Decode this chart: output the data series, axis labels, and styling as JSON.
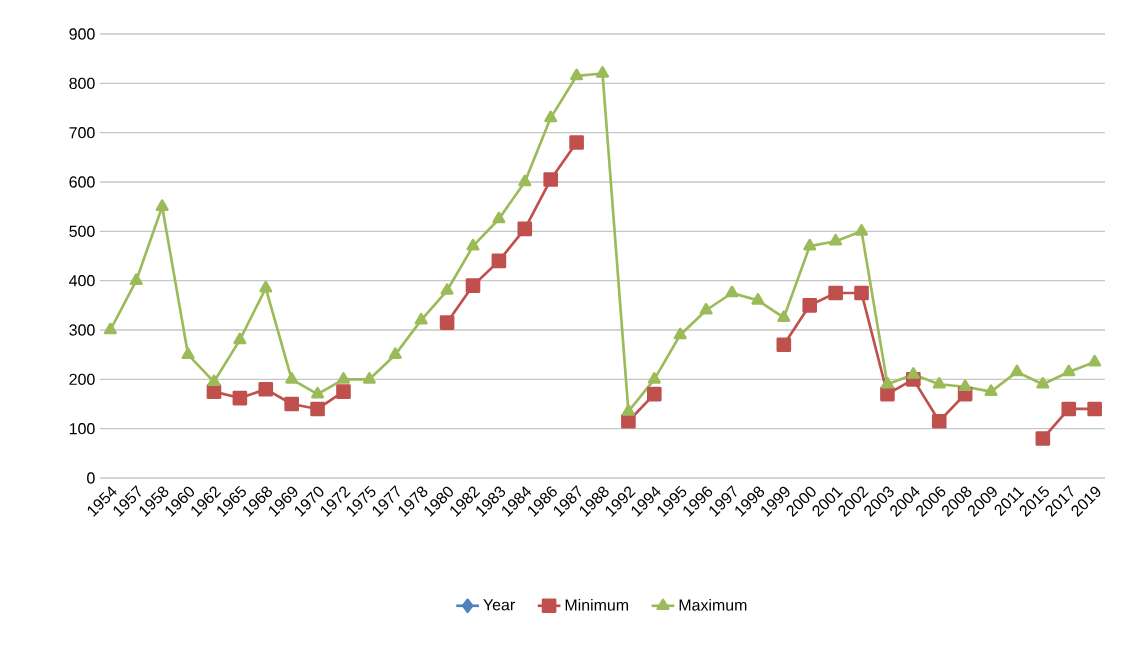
{
  "chart_data": {
    "type": "line",
    "categories": [
      "1954",
      "1957",
      "1958",
      "1960",
      "1962",
      "1965",
      "1968",
      "1969",
      "1970",
      "1972",
      "1975",
      "1977",
      "1978",
      "1980",
      "1982",
      "1983",
      "1984",
      "1986",
      "1987",
      "1988",
      "1992",
      "1994",
      "1995",
      "1996",
      "1997",
      "1998",
      "1999",
      "2000",
      "2001",
      "2002",
      "2003",
      "2004",
      "2006",
      "2008",
      "2009",
      "2011",
      "2015",
      "2017",
      "2019"
    ],
    "series": [
      {
        "name": "Year",
        "color": "#4f81bd",
        "marker": "diamond",
        "values": [
          null,
          null,
          null,
          null,
          null,
          null,
          null,
          null,
          null,
          null,
          null,
          null,
          null,
          null,
          null,
          null,
          null,
          null,
          null,
          null,
          null,
          null,
          null,
          null,
          null,
          null,
          null,
          null,
          null,
          null,
          null,
          null,
          null,
          null,
          null,
          null,
          null,
          null,
          null
        ]
      },
      {
        "name": "Minimum",
        "color": "#c0504d",
        "marker": "square",
        "values": [
          null,
          null,
          null,
          null,
          175,
          162,
          180,
          150,
          140,
          175,
          null,
          null,
          null,
          315,
          390,
          440,
          505,
          605,
          680,
          null,
          115,
          170,
          null,
          null,
          null,
          null,
          270,
          350,
          375,
          375,
          170,
          200,
          115,
          170,
          null,
          null,
          80,
          140,
          140
        ]
      },
      {
        "name": "Maximum",
        "color": "#9bbb59",
        "marker": "triangle",
        "values": [
          300,
          400,
          550,
          250,
          195,
          280,
          385,
          200,
          170,
          200,
          200,
          250,
          320,
          380,
          470,
          525,
          600,
          730,
          815,
          820,
          135,
          200,
          290,
          340,
          375,
          360,
          325,
          470,
          480,
          500,
          190,
          210,
          190,
          185,
          175,
          215,
          190,
          215,
          235
        ]
      }
    ],
    "ylim": [
      0,
      900
    ],
    "yticks": [
      0,
      100,
      200,
      300,
      400,
      500,
      600,
      700,
      800,
      900
    ],
    "grid": "y",
    "legend": "bottom",
    "line_style": "solid"
  }
}
